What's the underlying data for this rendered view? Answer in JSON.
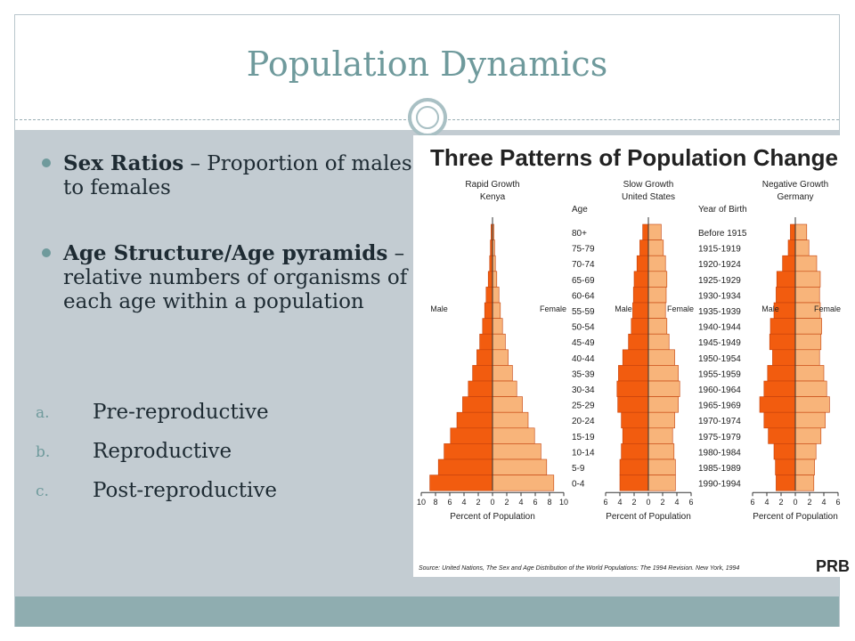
{
  "slide": {
    "title": "Population Dynamics",
    "bullets": [
      {
        "term": "Sex Ratios",
        "text": " – Proportion of males to females"
      },
      {
        "term": "Age Structure/Age pyramids",
        "text": " – relative numbers of organisms of each age within a population"
      }
    ],
    "sub_items": [
      {
        "marker": "a.",
        "label": "Pre-reproductive"
      },
      {
        "marker": "b.",
        "label": "Reproductive"
      },
      {
        "marker": "c.",
        "label": "Post-reproductive"
      }
    ]
  },
  "chart_data": {
    "type": "bar",
    "title": "Three Patterns of Population Change",
    "source": "Source: United Nations, The Sex and Age Distribution of the World Populations: The 1994 Revision. New York, 1994",
    "logo": "PRB",
    "colors": {
      "male": "#f25c0f",
      "female": "#f8b47a",
      "outline": "#c4400a"
    },
    "age_header": "Age",
    "age_groups": [
      "80+",
      "75-79",
      "70-74",
      "65-69",
      "60-64",
      "55-59",
      "50-54",
      "45-49",
      "40-44",
      "35-39",
      "30-34",
      "25-29",
      "20-24",
      "15-19",
      "10-14",
      "5-9",
      "0-4"
    ],
    "birth_header": "Year of Birth",
    "birth_years": [
      "Before 1915",
      "1915-1919",
      "1920-1924",
      "1925-1929",
      "1930-1934",
      "1935-1939",
      "1940-1944",
      "1945-1949",
      "1950-1954",
      "1955-1959",
      "1960-1964",
      "1965-1969",
      "1970-1974",
      "1975-1979",
      "1980-1984",
      "1985-1989",
      "1990-1994"
    ],
    "pyramids": [
      {
        "name": "Rapid Growth",
        "country": "Kenya",
        "xlabel": "Percent of Population",
        "xticks": [
          "10",
          "8",
          "6",
          "4",
          "2",
          "0",
          "2",
          "4",
          "6",
          "8",
          "10"
        ],
        "xmax": 10,
        "male": [
          0.2,
          0.3,
          0.4,
          0.6,
          0.9,
          1.1,
          1.4,
          1.8,
          2.2,
          2.8,
          3.4,
          4.2,
          5.0,
          5.9,
          6.8,
          7.6,
          8.8
        ],
        "female": [
          0.2,
          0.3,
          0.4,
          0.6,
          0.9,
          1.1,
          1.4,
          1.8,
          2.2,
          2.8,
          3.4,
          4.2,
          5.0,
          5.9,
          6.8,
          7.6,
          8.6
        ]
      },
      {
        "name": "Slow Growth",
        "country": "United States",
        "xlabel": "Percent of Population",
        "xticks": [
          "6",
          "4",
          "2",
          "0",
          "2",
          "4",
          "6"
        ],
        "xmax": 6,
        "male": [
          0.8,
          1.2,
          1.6,
          2.0,
          2.1,
          2.2,
          2.4,
          2.8,
          3.6,
          4.2,
          4.4,
          4.3,
          3.8,
          3.6,
          3.8,
          4.0,
          4.0
        ],
        "female": [
          1.8,
          2.1,
          2.4,
          2.6,
          2.5,
          2.4,
          2.6,
          2.9,
          3.7,
          4.2,
          4.4,
          4.2,
          3.7,
          3.4,
          3.6,
          3.8,
          3.8
        ]
      },
      {
        "name": "Negative Growth",
        "country": "Germany",
        "xlabel": "Percent of Population",
        "xticks": [
          "6",
          "4",
          "2",
          "0",
          "2",
          "4",
          "6"
        ],
        "xmax": 6,
        "male": [
          0.7,
          1.0,
          1.8,
          2.6,
          2.7,
          3.0,
          3.5,
          3.6,
          3.2,
          3.9,
          4.4,
          5.0,
          4.4,
          3.8,
          3.0,
          2.8,
          2.7
        ],
        "female": [
          1.6,
          1.9,
          3.0,
          3.5,
          3.4,
          3.5,
          3.7,
          3.6,
          3.4,
          4.0,
          4.4,
          4.8,
          4.2,
          3.6,
          2.9,
          2.7,
          2.6
        ]
      }
    ],
    "labels": {
      "male": "Male",
      "female": "Female"
    }
  }
}
